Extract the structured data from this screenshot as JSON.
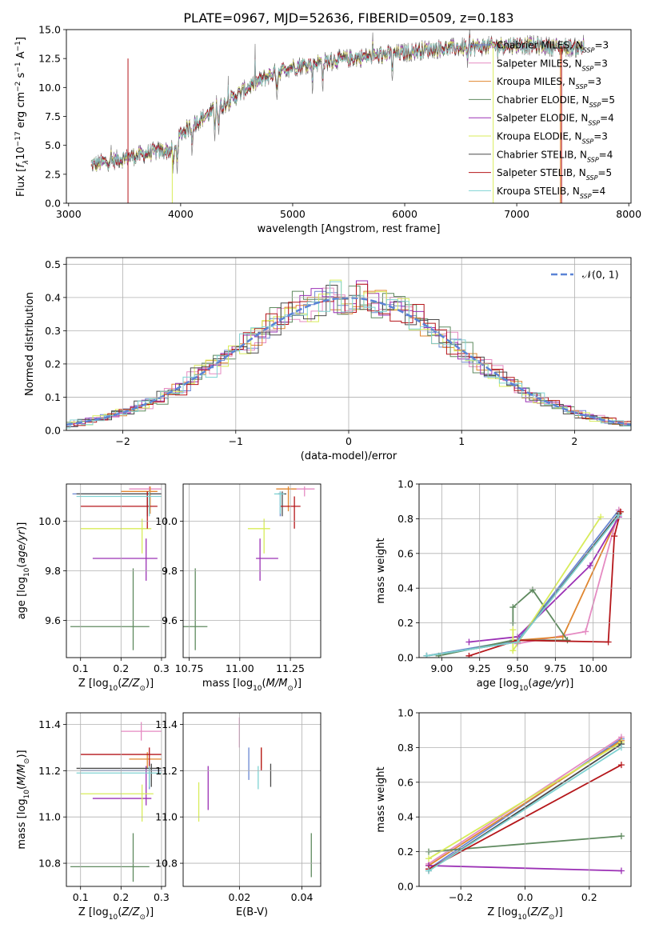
{
  "figure_title": "PLATE=0967, MJD=52636, FIBERID=0509, z=0.183",
  "colors": {
    "Chabrier MILES": "#6a87d2",
    "Salpeter MILES": "#e58ac2",
    "Kroupa MILES": "#e0862f",
    "Chabrier ELODIE": "#5f8a5f",
    "Salpeter ELODIE": "#9b30b5",
    "Kroupa ELODIE": "#d8ec5a",
    "Chabrier STELIB": "#4a4a4a",
    "Salpeter STELIB": "#b5161a",
    "Kroupa STELIB": "#7fd2d2",
    "normal": "#5b84d6"
  },
  "chart_data": [
    {
      "id": "spectrum",
      "type": "line",
      "title": "PLATE=0967, MJD=52636, FIBERID=0509, z=0.183",
      "xlabel": "wavelength [Angstrom, rest frame]",
      "ylabel": "Flux [f_λ 10^-17 erg cm^-2 s^-1 A^-1]",
      "xlim": [
        2980,
        8020
      ],
      "ylim": [
        0,
        15
      ],
      "xticks": [
        3000,
        4000,
        5000,
        6000,
        7000,
        8000
      ],
      "yticks": [
        0.0,
        2.5,
        5.0,
        7.5,
        10.0,
        12.5,
        15.0
      ],
      "legend_position": "top-right",
      "legend": [
        {
          "name": "Chabrier MILES",
          "nssp": "3"
        },
        {
          "name": "Salpeter MILES",
          "nssp": "3"
        },
        {
          "name": "Kroupa MILES",
          "nssp": "3"
        },
        {
          "name": "Chabrier ELODIE",
          "nssp": "5"
        },
        {
          "name": "Salpeter ELODIE",
          "nssp": "4"
        },
        {
          "name": "Kroupa ELODIE",
          "nssp": "3"
        },
        {
          "name": "Chabrier STELIB",
          "nssp": "4"
        },
        {
          "name": "Salpeter STELIB",
          "nssp": "5"
        },
        {
          "name": "Kroupa STELIB",
          "nssp": "4"
        }
      ],
      "continuum": {
        "x": [
          3200,
          3400,
          3600,
          3800,
          3950,
          4000,
          4200,
          4400,
          4600,
          4800,
          5000,
          5200,
          5400,
          5600,
          5800,
          6000,
          6200,
          6400,
          6600,
          6800,
          7000,
          7200,
          7400,
          7600
        ],
        "y": [
          3.3,
          3.7,
          4.1,
          4.5,
          4.6,
          6.0,
          7.4,
          8.6,
          10.0,
          11.1,
          11.8,
          12.1,
          12.4,
          12.6,
          12.8,
          13.0,
          13.3,
          13.4,
          13.5,
          13.6,
          13.7,
          13.6,
          13.5,
          13.4
        ]
      }
    },
    {
      "id": "residuals",
      "type": "line",
      "xlabel": "(data-model)/error",
      "ylabel": "Normed distribution",
      "xlim": [
        -2.5,
        2.5
      ],
      "ylim": [
        0,
        0.52
      ],
      "xticks": [
        -2,
        -1,
        0,
        1,
        2
      ],
      "yticks": [
        0.0,
        0.1,
        0.2,
        0.3,
        0.4,
        0.5
      ],
      "legend_position": "top-right",
      "grid": true,
      "reference_curve": "N(0,1)"
    },
    {
      "id": "age-Z",
      "type": "scatter",
      "xlabel": "Z [log10(Z/Z_sun)]",
      "ylabel": "age [log10(age/yr)]",
      "xlim": [
        0.065,
        0.31
      ],
      "ylim": [
        9.45,
        10.15
      ],
      "xticks": [
        0.1,
        0.2,
        0.3
      ],
      "yticks": [
        9.6,
        9.8,
        10.0
      ],
      "grid": true,
      "points": [
        {
          "model": "Chabrier MILES",
          "x": 0.265,
          "y": 10.11,
          "x_err": [
            0.08,
            0.3
          ],
          "y_err": [
            10.03,
            10.12
          ]
        },
        {
          "model": "Salpeter MILES",
          "x": 0.27,
          "y": 10.13,
          "x_err": [
            0.22,
            0.3
          ],
          "y_err": [
            10.04,
            10.14
          ]
        },
        {
          "model": "Kroupa MILES",
          "x": 0.272,
          "y": 10.12,
          "x_err": [
            0.2,
            0.29
          ],
          "y_err": [
            10.03,
            10.14
          ]
        },
        {
          "model": "Chabrier ELODIE",
          "x": 0.23,
          "y": 9.575,
          "x_err": [
            0.075,
            0.27
          ],
          "y_err": [
            9.48,
            9.81
          ]
        },
        {
          "model": "Salpeter ELODIE",
          "x": 0.262,
          "y": 9.85,
          "x_err": [
            0.13,
            0.29
          ],
          "y_err": [
            9.76,
            9.93
          ]
        },
        {
          "model": "Kroupa ELODIE",
          "x": 0.252,
          "y": 9.97,
          "x_err": [
            0.1,
            0.275
          ],
          "y_err": [
            9.87,
            10.01
          ]
        },
        {
          "model": "Chabrier STELIB",
          "x": 0.265,
          "y": 10.11,
          "x_err": [
            0.09,
            0.3
          ],
          "y_err": [
            10.02,
            10.12
          ]
        },
        {
          "model": "Salpeter STELIB",
          "x": 0.265,
          "y": 10.06,
          "x_err": [
            0.1,
            0.29
          ],
          "y_err": [
            9.97,
            10.12
          ]
        },
        {
          "model": "Kroupa STELIB",
          "x": 0.27,
          "y": 10.1,
          "x_err": [
            0.09,
            0.3
          ],
          "y_err": [
            10.02,
            10.12
          ]
        }
      ]
    },
    {
      "id": "age-mass",
      "type": "scatter",
      "xlabel": "mass [log10(M/M_sun)]",
      "ylabel": "",
      "xlim": [
        10.72,
        11.4
      ],
      "ylim": [
        9.45,
        10.15
      ],
      "xticks": [
        10.75,
        11.0,
        11.25
      ],
      "yticks": [
        9.6,
        9.8,
        10.0
      ],
      "grid": true,
      "points": [
        {
          "model": "Chabrier MILES",
          "x": 11.2,
          "y": 10.11,
          "x_err": [
            11.19,
            11.22
          ],
          "y_err": [
            10.02,
            10.12
          ]
        },
        {
          "model": "Salpeter MILES",
          "x": 11.32,
          "y": 10.13,
          "x_err": [
            11.26,
            11.37
          ],
          "y_err": [
            10.1,
            10.14
          ]
        },
        {
          "model": "Kroupa MILES",
          "x": 11.24,
          "y": 10.13,
          "x_err": [
            11.18,
            11.28
          ],
          "y_err": [
            10.04,
            10.14
          ]
        },
        {
          "model": "Chabrier ELODIE",
          "x": 10.78,
          "y": 9.575,
          "x_err": [
            10.72,
            10.84
          ],
          "y_err": [
            9.48,
            9.81
          ]
        },
        {
          "model": "Salpeter ELODIE",
          "x": 11.1,
          "y": 9.85,
          "x_err": [
            11.08,
            11.19
          ],
          "y_err": [
            9.76,
            9.93
          ]
        },
        {
          "model": "Kroupa ELODIE",
          "x": 11.12,
          "y": 9.97,
          "x_err": [
            11.04,
            11.15
          ],
          "y_err": [
            9.87,
            10.01
          ]
        },
        {
          "model": "Chabrier STELIB",
          "x": 11.21,
          "y": 10.11,
          "x_err": [
            11.19,
            11.23
          ],
          "y_err": [
            10.02,
            10.12
          ]
        },
        {
          "model": "Salpeter STELIB",
          "x": 11.27,
          "y": 10.06,
          "x_err": [
            11.2,
            11.3
          ],
          "y_err": [
            9.97,
            10.1
          ]
        },
        {
          "model": "Kroupa STELIB",
          "x": 11.2,
          "y": 10.11,
          "x_err": [
            11.17,
            11.22
          ],
          "y_err": [
            10.03,
            10.12
          ]
        }
      ]
    },
    {
      "id": "mw-age",
      "type": "line",
      "xlabel": "age [log10(age/yr)]",
      "ylabel": "mass weight",
      "xlim": [
        8.85,
        10.25
      ],
      "ylim": [
        0,
        1
      ],
      "xticks": [
        9.0,
        9.25,
        9.5,
        9.75,
        10.0
      ],
      "yticks": [
        0.0,
        0.2,
        0.4,
        0.6,
        0.8,
        1.0
      ],
      "grid": true,
      "series": [
        {
          "model": "Chabrier MILES",
          "x": [
            8.9,
            9.5,
            10.17
          ],
          "y": [
            0.01,
            0.1,
            0.85
          ]
        },
        {
          "model": "Salpeter MILES",
          "x": [
            9.5,
            9.95,
            10.17
          ],
          "y": [
            0.08,
            0.15,
            0.85
          ]
        },
        {
          "model": "Kroupa MILES",
          "x": [
            9.5,
            9.8,
            10.18
          ],
          "y": [
            0.1,
            0.12,
            0.84
          ]
        },
        {
          "model": "Chabrier ELODIE",
          "x": [
            9.47,
            9.47,
            9.6,
            9.83,
            9.47,
            8.98
          ],
          "y": [
            0.2,
            0.29,
            0.39,
            0.1,
            0.1,
            0.01
          ]
        },
        {
          "model": "Salpeter ELODIE",
          "x": [
            9.18,
            9.5,
            9.98,
            10.17
          ],
          "y": [
            0.09,
            0.12,
            0.53,
            0.81
          ]
        },
        {
          "model": "Kroupa ELODIE",
          "x": [
            9.47,
            9.47,
            10.05
          ],
          "y": [
            0.16,
            0.04,
            0.81
          ]
        },
        {
          "model": "Chabrier STELIB",
          "x": [
            8.9,
            9.5,
            10.17
          ],
          "y": [
            0.01,
            0.09,
            0.83
          ]
        },
        {
          "model": "Salpeter STELIB",
          "x": [
            9.18,
            9.5,
            10.1,
            10.14,
            10.18
          ],
          "y": [
            0.01,
            0.1,
            0.09,
            0.7,
            0.84
          ]
        },
        {
          "model": "Kroupa STELIB",
          "x": [
            8.9,
            9.5,
            10.17
          ],
          "y": [
            0.01,
            0.09,
            0.82
          ]
        }
      ]
    },
    {
      "id": "mass-Z",
      "type": "scatter",
      "xlabel": "Z [log10(Z/Z_sun)]",
      "ylabel": "mass [log10(M/M_sun)]",
      "xlim": [
        0.065,
        0.31
      ],
      "ylim": [
        10.7,
        11.45
      ],
      "xticks": [
        0.1,
        0.2,
        0.3
      ],
      "yticks": [
        10.8,
        11.0,
        11.2,
        11.4
      ],
      "grid": true,
      "points": [
        {
          "model": "Chabrier MILES",
          "x": 0.27,
          "y": 11.2,
          "x_err": [
            0.1,
            0.3
          ],
          "y_err": [
            11.12,
            11.24
          ]
        },
        {
          "model": "Salpeter MILES",
          "x": 0.25,
          "y": 11.37,
          "x_err": [
            0.2,
            0.3
          ],
          "y_err": [
            11.33,
            11.41
          ]
        },
        {
          "model": "Kroupa MILES",
          "x": 0.265,
          "y": 11.25,
          "x_err": [
            0.22,
            0.3
          ],
          "y_err": [
            11.21,
            11.28
          ]
        },
        {
          "model": "Chabrier ELODIE",
          "x": 0.23,
          "y": 10.785,
          "x_err": [
            0.075,
            0.27
          ],
          "y_err": [
            10.72,
            10.93
          ]
        },
        {
          "model": "Salpeter ELODIE",
          "x": 0.262,
          "y": 11.08,
          "x_err": [
            0.13,
            0.275
          ],
          "y_err": [
            11.05,
            11.22
          ]
        },
        {
          "model": "Kroupa ELODIE",
          "x": 0.252,
          "y": 11.1,
          "x_err": [
            0.1,
            0.28
          ],
          "y_err": [
            10.98,
            11.14
          ]
        },
        {
          "model": "Chabrier STELIB",
          "x": 0.275,
          "y": 11.21,
          "x_err": [
            0.09,
            0.3
          ],
          "y_err": [
            11.13,
            11.23
          ]
        },
        {
          "model": "Salpeter STELIB",
          "x": 0.27,
          "y": 11.27,
          "x_err": [
            0.1,
            0.3
          ],
          "y_err": [
            11.2,
            11.3
          ]
        },
        {
          "model": "Kroupa STELIB",
          "x": 0.27,
          "y": 11.19,
          "x_err": [
            0.09,
            0.3
          ],
          "y_err": [
            11.13,
            11.22
          ]
        }
      ]
    },
    {
      "id": "mass-ebv",
      "type": "scatter",
      "xlabel": "E(B-V)",
      "ylabel": "",
      "xlim": [
        0.002,
        0.046
      ],
      "ylim": [
        10.7,
        11.45
      ],
      "xticks": [
        0.02,
        0.04
      ],
      "yticks": [
        10.8,
        11.0,
        11.2,
        11.4
      ],
      "grid": true,
      "points": [
        {
          "model": "Chabrier MILES",
          "x": 0.023,
          "y": 11.2,
          "y_err": [
            11.16,
            11.3
          ]
        },
        {
          "model": "Salpeter MILES",
          "x": 0.02,
          "y": 11.37,
          "y_err": [
            11.3,
            11.43
          ]
        },
        {
          "model": "Kroupa MILES",
          "x": 0.027,
          "y": 11.25,
          "y_err": [
            11.21,
            11.3
          ]
        },
        {
          "model": "Chabrier ELODIE",
          "x": 0.043,
          "y": 10.8,
          "y_err": [
            10.74,
            10.93
          ]
        },
        {
          "model": "Salpeter ELODIE",
          "x": 0.01,
          "y": 11.1,
          "y_err": [
            11.03,
            11.22
          ]
        },
        {
          "model": "Kroupa ELODIE",
          "x": 0.007,
          "y": 11.0,
          "y_err": [
            10.98,
            11.15
          ]
        },
        {
          "model": "Chabrier STELIB",
          "x": 0.03,
          "y": 11.2,
          "y_err": [
            11.13,
            11.23
          ]
        },
        {
          "model": "Salpeter STELIB",
          "x": 0.027,
          "y": 11.27,
          "y_err": [
            11.2,
            11.3
          ]
        },
        {
          "model": "Kroupa STELIB",
          "x": 0.026,
          "y": 11.18,
          "y_err": [
            11.12,
            11.22
          ]
        }
      ]
    },
    {
      "id": "mw-Z",
      "type": "line",
      "xlabel": "Z [log10(Z/Z_sun)]",
      "ylabel": "mass weight",
      "xlim": [
        -0.33,
        0.33
      ],
      "ylim": [
        0,
        1
      ],
      "xticks": [
        -0.2,
        0.0,
        0.2
      ],
      "yticks": [
        0.0,
        0.2,
        0.4,
        0.6,
        0.8,
        1.0
      ],
      "grid": true,
      "series": [
        {
          "model": "Chabrier MILES",
          "x": [
            -0.3,
            0.3
          ],
          "y": [
            0.1,
            0.85
          ]
        },
        {
          "model": "Salpeter MILES",
          "x": [
            -0.3,
            0.3
          ],
          "y": [
            0.13,
            0.86
          ]
        },
        {
          "model": "Kroupa MILES",
          "x": [
            -0.3,
            0.3
          ],
          "y": [
            0.12,
            0.84
          ]
        },
        {
          "model": "Chabrier ELODIE",
          "x": [
            -0.3,
            0.3
          ],
          "y": [
            0.2,
            0.29
          ]
        },
        {
          "model": "Salpeter ELODIE",
          "x": [
            -0.3,
            0.3
          ],
          "y": [
            0.12,
            0.09
          ]
        },
        {
          "model": "Kroupa ELODIE",
          "x": [
            -0.3,
            0.3
          ],
          "y": [
            0.16,
            0.83
          ]
        },
        {
          "model": "Chabrier STELIB",
          "x": [
            -0.3,
            0.3
          ],
          "y": [
            0.09,
            0.82
          ]
        },
        {
          "model": "Salpeter STELIB",
          "x": [
            -0.3,
            0.3
          ],
          "y": [
            0.1,
            0.7
          ]
        },
        {
          "model": "Kroupa STELIB",
          "x": [
            -0.3,
            0.3
          ],
          "y": [
            0.09,
            0.8
          ]
        }
      ]
    }
  ]
}
